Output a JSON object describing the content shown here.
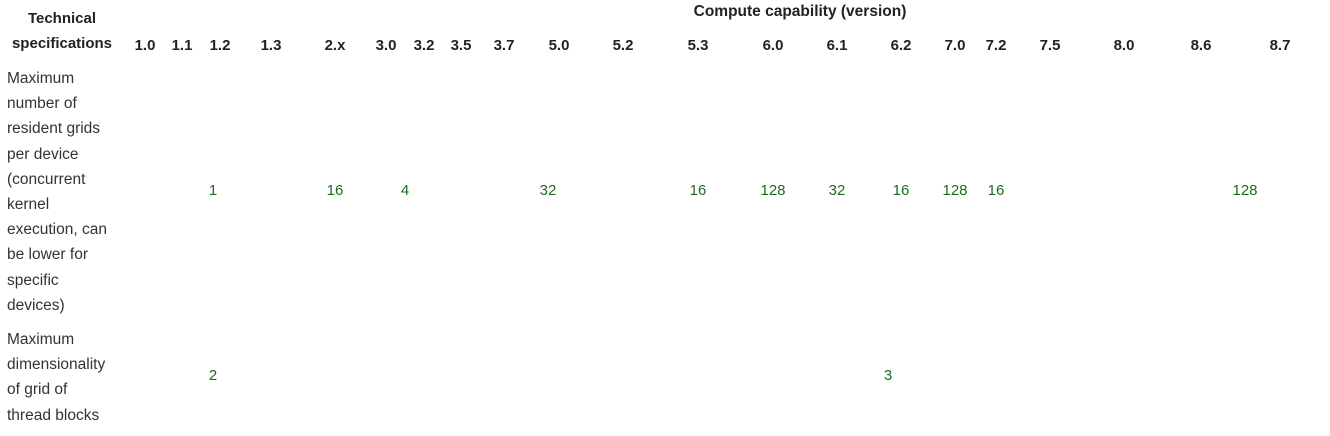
{
  "table": {
    "corner_header": [
      "Technical",
      "specifications"
    ],
    "group_header": "Compute capability (version)",
    "versions": [
      "1.0",
      "1.1",
      "1.2",
      "1.3",
      "2.x",
      "3.0",
      "3.2",
      "3.5",
      "3.7",
      "5.0",
      "5.2",
      "5.3",
      "6.0",
      "6.1",
      "6.2",
      "7.0",
      "7.2",
      "7.5",
      "8.0",
      "8.6",
      "8.7"
    ],
    "rows": [
      {
        "label_lines": [
          "Maximum",
          "number of",
          "resident grids",
          "per device",
          "(concurrent",
          "kernel",
          "execution, can",
          "be lower for",
          "specific",
          "devices)"
        ],
        "values": [
          {
            "text": "1",
            "from": "1.0",
            "to": "1.3"
          },
          {
            "text": "16",
            "from": "2.x",
            "to": "2.x"
          },
          {
            "text": "4",
            "from": "3.0",
            "to": "3.2"
          },
          {
            "text": "32",
            "from": "3.5",
            "to": "5.2"
          },
          {
            "text": "16",
            "from": "5.3",
            "to": "5.3"
          },
          {
            "text": "128",
            "from": "6.0",
            "to": "6.0"
          },
          {
            "text": "32",
            "from": "6.1",
            "to": "6.1"
          },
          {
            "text": "16",
            "from": "6.2",
            "to": "6.2"
          },
          {
            "text": "128",
            "from": "7.0",
            "to": "7.0"
          },
          {
            "text": "16",
            "from": "7.2",
            "to": "7.2"
          },
          {
            "text": "128",
            "from": "7.5",
            "to": "8.7"
          }
        ]
      },
      {
        "label_lines": [
          "Maximum",
          "dimensionality",
          "of grid of",
          "thread blocks"
        ],
        "values": [
          {
            "text": "2",
            "from": "1.0",
            "to": "1.3"
          },
          {
            "text": "3",
            "from": "2.x",
            "to": "8.7"
          }
        ]
      }
    ]
  }
}
